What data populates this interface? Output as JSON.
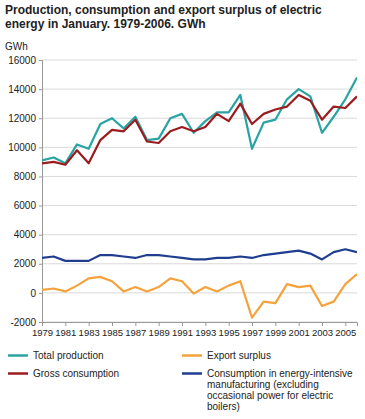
{
  "chart_data": {
    "type": "line",
    "title": "Production, consumption and export surplus of electric energy in January. 1979-2006. GWh",
    "y_label": "GWh",
    "x": [
      1979,
      1980,
      1981,
      1982,
      1983,
      1984,
      1985,
      1986,
      1987,
      1988,
      1989,
      1990,
      1991,
      1992,
      1993,
      1994,
      1995,
      1996,
      1997,
      1998,
      1999,
      2000,
      2001,
      2002,
      2003,
      2004,
      2005,
      2006
    ],
    "xlim": [
      1979,
      2006
    ],
    "xticks": [
      1979,
      1981,
      1983,
      1985,
      1987,
      1989,
      1991,
      1993,
      1995,
      1997,
      1999,
      2001,
      2003,
      2005
    ],
    "ylim": [
      -2000,
      16000
    ],
    "yticks": [
      -2000,
      0,
      2000,
      4000,
      6000,
      8000,
      10000,
      12000,
      14000,
      16000
    ],
    "grid": true,
    "legend": "bottom",
    "series": [
      {
        "name": "Total production",
        "color": "#2aa3a3",
        "values": [
          9100,
          9300,
          8900,
          10200,
          9900,
          11600,
          12000,
          11300,
          12100,
          10500,
          10600,
          12000,
          12300,
          11000,
          11800,
          12400,
          12400,
          13600,
          9900,
          11700,
          11900,
          13300,
          14000,
          13500,
          11000,
          12100,
          13300,
          14800
        ]
      },
      {
        "name": "Export surplus",
        "color": "#f5a23c",
        "values": [
          200,
          300,
          100,
          500,
          1000,
          1100,
          800,
          100,
          400,
          100,
          400,
          1000,
          800,
          -50,
          400,
          100,
          500,
          800,
          -1700,
          -600,
          -700,
          600,
          400,
          500,
          -900,
          -600,
          600,
          1300
        ]
      },
      {
        "name": "Gross consumption",
        "color": "#9b1c1f",
        "values": [
          8900,
          9000,
          8800,
          9800,
          8900,
          10500,
          11200,
          11100,
          11900,
          10400,
          10300,
          11100,
          11400,
          11100,
          11400,
          12300,
          11800,
          13000,
          11600,
          12300,
          12600,
          12800,
          13600,
          13200,
          11900,
          12800,
          12700,
          13500
        ]
      },
      {
        "name": "Consumption in energy-intensive manufacturing (excluding occasional power for electric boilers)",
        "color": "#1f3e8f",
        "values": [
          2400,
          2500,
          2200,
          2200,
          2200,
          2600,
          2600,
          2500,
          2400,
          2600,
          2600,
          2500,
          2400,
          2300,
          2300,
          2400,
          2400,
          2500,
          2400,
          2600,
          2700,
          2800,
          2900,
          2700,
          2300,
          2800,
          3000,
          2800
        ]
      }
    ]
  }
}
